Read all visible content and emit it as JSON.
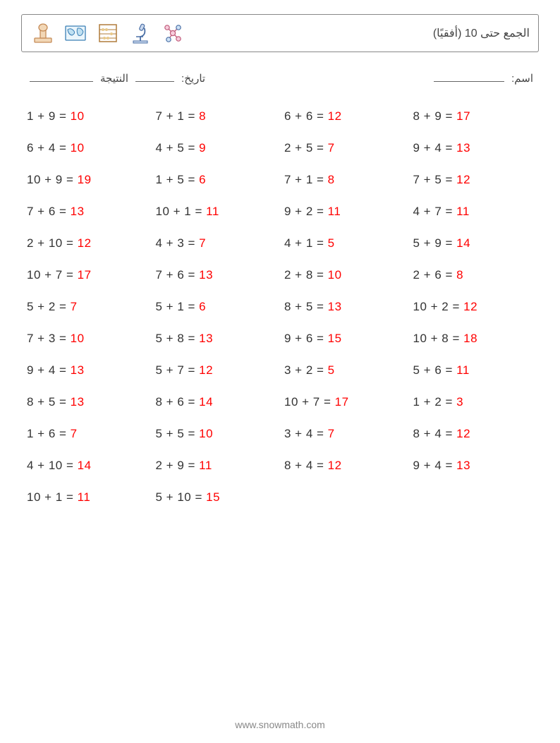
{
  "title": "الجمع حتى 10 (أفقيًا)",
  "meta": {
    "name_label": "اسم:",
    "date_label": "تاريخ:",
    "score_label": "النتيجة"
  },
  "footer": "www.snowmath.com",
  "style": {
    "page_bg": "#ffffff",
    "text_color": "#333333",
    "answer_color": "#ff0000",
    "border_color": "#888888",
    "footer_color": "#888888",
    "font_size_problem": 17,
    "font_size_title": 16,
    "font_size_meta": 15,
    "font_size_footer": 14,
    "columns": 4,
    "rows": 13,
    "blank_short_w": 55,
    "blank_med_w": 90,
    "blank_long_w": 100
  },
  "icons": [
    {
      "name": "rubber-stamp-icon",
      "stroke": "#c58b57",
      "fill": "#f2d7b6"
    },
    {
      "name": "world-map-icon",
      "stroke": "#3a7fb5",
      "fill": "#bfe0f2"
    },
    {
      "name": "abacus-icon",
      "stroke": "#b07c3a",
      "fill": "#e8c98a"
    },
    {
      "name": "microscope-icon",
      "stroke": "#4a6fa5",
      "fill": "#c9d8ee"
    },
    {
      "name": "molecule-icon",
      "stroke": "#c05a7a",
      "fill": "none"
    }
  ],
  "problems": [
    [
      {
        "a": 1,
        "b": 9,
        "ans": 10
      },
      {
        "a": 7,
        "b": 1,
        "ans": 8
      },
      {
        "a": 6,
        "b": 6,
        "ans": 12
      },
      {
        "a": 8,
        "b": 9,
        "ans": 17
      }
    ],
    [
      {
        "a": 6,
        "b": 4,
        "ans": 10
      },
      {
        "a": 4,
        "b": 5,
        "ans": 9
      },
      {
        "a": 2,
        "b": 5,
        "ans": 7
      },
      {
        "a": 9,
        "b": 4,
        "ans": 13
      }
    ],
    [
      {
        "a": 10,
        "b": 9,
        "ans": 19
      },
      {
        "a": 1,
        "b": 5,
        "ans": 6
      },
      {
        "a": 7,
        "b": 1,
        "ans": 8
      },
      {
        "a": 7,
        "b": 5,
        "ans": 12
      }
    ],
    [
      {
        "a": 7,
        "b": 6,
        "ans": 13
      },
      {
        "a": 10,
        "b": 1,
        "ans": 11
      },
      {
        "a": 9,
        "b": 2,
        "ans": 11
      },
      {
        "a": 4,
        "b": 7,
        "ans": 11
      }
    ],
    [
      {
        "a": 2,
        "b": 10,
        "ans": 12
      },
      {
        "a": 4,
        "b": 3,
        "ans": 7
      },
      {
        "a": 4,
        "b": 1,
        "ans": 5
      },
      {
        "a": 5,
        "b": 9,
        "ans": 14
      }
    ],
    [
      {
        "a": 10,
        "b": 7,
        "ans": 17
      },
      {
        "a": 7,
        "b": 6,
        "ans": 13
      },
      {
        "a": 2,
        "b": 8,
        "ans": 10
      },
      {
        "a": 2,
        "b": 6,
        "ans": 8
      }
    ],
    [
      {
        "a": 5,
        "b": 2,
        "ans": 7
      },
      {
        "a": 5,
        "b": 1,
        "ans": 6
      },
      {
        "a": 8,
        "b": 5,
        "ans": 13
      },
      {
        "a": 10,
        "b": 2,
        "ans": 12
      }
    ],
    [
      {
        "a": 7,
        "b": 3,
        "ans": 10
      },
      {
        "a": 5,
        "b": 8,
        "ans": 13
      },
      {
        "a": 9,
        "b": 6,
        "ans": 15
      },
      {
        "a": 10,
        "b": 8,
        "ans": 18
      }
    ],
    [
      {
        "a": 9,
        "b": 4,
        "ans": 13
      },
      {
        "a": 5,
        "b": 7,
        "ans": 12
      },
      {
        "a": 3,
        "b": 2,
        "ans": 5
      },
      {
        "a": 5,
        "b": 6,
        "ans": 11
      }
    ],
    [
      {
        "a": 8,
        "b": 5,
        "ans": 13
      },
      {
        "a": 8,
        "b": 6,
        "ans": 14
      },
      {
        "a": 10,
        "b": 7,
        "ans": 17
      },
      {
        "a": 1,
        "b": 2,
        "ans": 3
      }
    ],
    [
      {
        "a": 1,
        "b": 6,
        "ans": 7
      },
      {
        "a": 5,
        "b": 5,
        "ans": 10
      },
      {
        "a": 3,
        "b": 4,
        "ans": 7
      },
      {
        "a": 8,
        "b": 4,
        "ans": 12
      }
    ],
    [
      {
        "a": 4,
        "b": 10,
        "ans": 14
      },
      {
        "a": 2,
        "b": 9,
        "ans": 11
      },
      {
        "a": 8,
        "b": 4,
        "ans": 12
      },
      {
        "a": 9,
        "b": 4,
        "ans": 13
      }
    ],
    [
      {
        "a": 10,
        "b": 1,
        "ans": 11
      },
      {
        "a": 5,
        "b": 10,
        "ans": 15
      },
      null,
      null
    ]
  ]
}
